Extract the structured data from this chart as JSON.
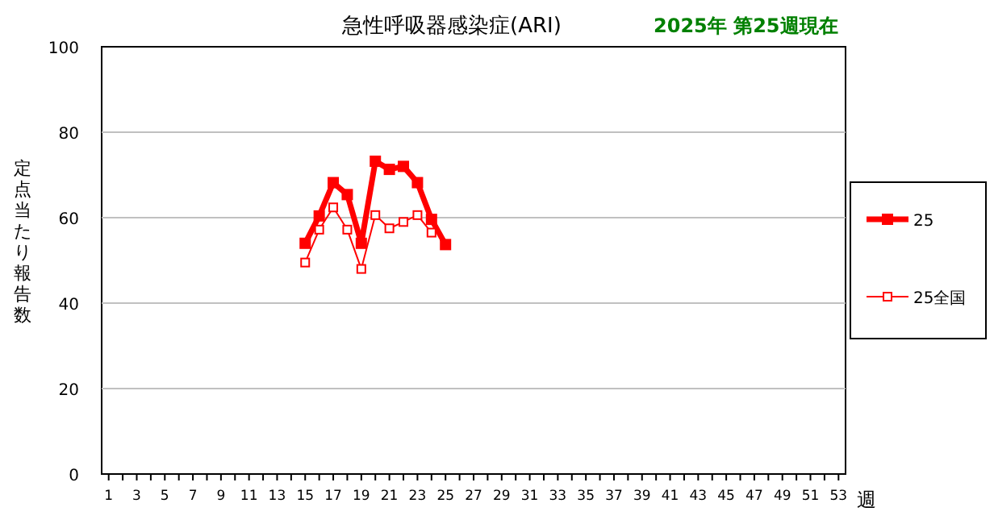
{
  "chart_data": {
    "type": "line",
    "title": "急性呼吸器感染症(ARI)",
    "subtitle": "2025年 第25週現在",
    "xlabel": "週",
    "ylabel": "定点当たり報告数",
    "xlim": [
      0.5,
      53.5
    ],
    "xticks": [
      1,
      {
        "value": 2,
        "label": null
      },
      3,
      {
        "value": 4,
        "label": null
      },
      5,
      {
        "value": 6,
        "label": null
      },
      7,
      {
        "value": 8,
        "label": null
      },
      9,
      {
        "value": 10,
        "label": null
      },
      11,
      {
        "value": 12,
        "label": null
      },
      13,
      {
        "value": 14,
        "label": null
      },
      15,
      {
        "value": 16,
        "label": null
      },
      17,
      {
        "value": 18,
        "label": null
      },
      19,
      {
        "value": 20,
        "label": null
      },
      21,
      {
        "value": 22,
        "label": null
      },
      23,
      {
        "value": 24,
        "label": null
      },
      25,
      {
        "value": 26,
        "label": null
      },
      27,
      {
        "value": 28,
        "label": null
      },
      29,
      {
        "value": 30,
        "label": null
      },
      31,
      {
        "value": 32,
        "label": null
      },
      33,
      {
        "value": 34,
        "label": null
      },
      35,
      {
        "value": 36,
        "label": null
      },
      37,
      {
        "value": 38,
        "label": null
      },
      39,
      {
        "value": 40,
        "label": null
      },
      41,
      {
        "value": 42,
        "label": null
      },
      43,
      {
        "value": 44,
        "label": null
      },
      45,
      {
        "value": 46,
        "label": null
      },
      47,
      {
        "value": 48,
        "label": null
      },
      49,
      {
        "value": 50,
        "label": null
      },
      51,
      {
        "value": 52,
        "label": null
      },
      53
    ],
    "series": [
      {
        "name": "25",
        "color": "#ff0000",
        "x": [
          15,
          16,
          17,
          18,
          19,
          20,
          21,
          22,
          23,
          24,
          25
        ],
        "values": [
          54.0,
          60.4,
          68.2,
          65.4,
          54.0,
          73.2,
          71.3,
          72.0,
          68.2,
          59.6,
          53.7
        ]
      },
      {
        "name": "25全国",
        "color": "#ff0000",
        "x": [
          15,
          16,
          17,
          18,
          19,
          20,
          21,
          22,
          23,
          24
        ],
        "values": [
          49.5,
          57.2,
          62.4,
          57.2,
          48.0,
          60.6,
          57.5,
          59.0,
          60.6,
          56.5
        ]
      }
    ],
    "ylim": [
      0,
      100
    ],
    "yticks": [
      0,
      20,
      40,
      60,
      80,
      100
    ],
    "grid": "y",
    "legend": "right",
    "marker": "square"
  }
}
